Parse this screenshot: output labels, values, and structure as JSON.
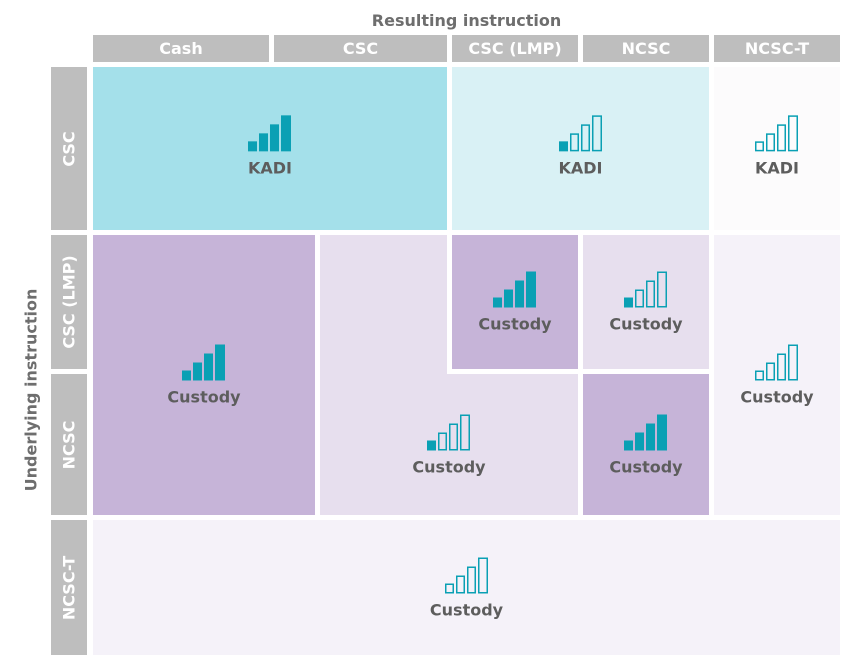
{
  "titles": {
    "top": "Resulting instruction",
    "side": "Underlying instruction"
  },
  "columns": [
    {
      "key": "cash",
      "label": "Cash"
    },
    {
      "key": "csc",
      "label": "CSC"
    },
    {
      "key": "csc-lmp",
      "label": "CSC (LMP)"
    },
    {
      "key": "ncsc",
      "label": "NCSC"
    },
    {
      "key": "ncsc-t",
      "label": "NCSC-T"
    }
  ],
  "rows": [
    {
      "key": "csc",
      "label": "CSC"
    },
    {
      "key": "csc-lmp",
      "label": "CSC (LMP)"
    },
    {
      "key": "ncsc",
      "label": "NCSC"
    },
    {
      "key": "ncsc-t",
      "label": "NCSC-T"
    }
  ],
  "colors": {
    "header_gray": "#bebebe",
    "accent_teal": "#0aa0b4",
    "kadi_strong": "#a4e0ea",
    "kadi_light": "#d9f1f5",
    "kadi_faint": "#fcfbfc",
    "custody_strong": "#c6b4d8",
    "custody_light": "#e7dfee",
    "custody_faint": "#f5f2f9"
  },
  "icon_legend": {
    "bars-filled-icon": "4 of 4 bars filled",
    "bars-one-filled-icon": "1 of 4 bars filled"
  },
  "cells": [
    {
      "id": "csc-row-cash-csc",
      "row": "CSC",
      "cols": [
        "Cash",
        "CSC"
      ],
      "label": "KADI",
      "fill_level": "strong",
      "icon": "bars-filled-icon"
    },
    {
      "id": "csc-row-lmp-ncsc",
      "row": "CSC",
      "cols": [
        "CSC (LMP)",
        "NCSC"
      ],
      "label": "KADI",
      "fill_level": "light",
      "icon": "bars-one-filled-icon"
    },
    {
      "id": "csc-row-ncsc-t",
      "row": "CSC",
      "cols": [
        "NCSC-T"
      ],
      "label": "KADI",
      "fill_level": "faint",
      "icon": "bars-one-filled-icon"
    },
    {
      "id": "lmp-ncsc-rows-cash",
      "rows": [
        "CSC (LMP)",
        "NCSC"
      ],
      "cols": [
        "Cash"
      ],
      "label": "Custody",
      "fill_level": "strong",
      "icon": "bars-filled-icon"
    },
    {
      "id": "lmp-ncsc-rows-csc",
      "rows": [
        "CSC (LMP)",
        "NCSC"
      ],
      "cols": [
        "CSC",
        "CSC (LMP)"
      ],
      "label": "Custody",
      "fill_level": "light",
      "icon": "bars-one-filled-icon"
    },
    {
      "id": "lmp-row-lmp",
      "row": "CSC (LMP)",
      "cols": [
        "CSC (LMP)"
      ],
      "label": "Custody",
      "fill_level": "strong",
      "icon": "bars-filled-icon"
    },
    {
      "id": "lmp-row-ncsc",
      "row": "CSC (LMP)",
      "cols": [
        "NCSC"
      ],
      "label": "Custody",
      "fill_level": "light",
      "icon": "bars-one-filled-icon"
    },
    {
      "id": "ncsc-row-ncsc",
      "row": "NCSC",
      "cols": [
        "NCSC"
      ],
      "label": "Custody",
      "fill_level": "strong",
      "icon": "bars-filled-icon"
    },
    {
      "id": "lmp-ncsc-rows-ncsc-t",
      "rows": [
        "CSC (LMP)",
        "NCSC"
      ],
      "cols": [
        "NCSC-T"
      ],
      "label": "Custody",
      "fill_level": "faint",
      "icon": "bars-one-filled-icon"
    },
    {
      "id": "ncsc-t-row-all",
      "row": "NCSC-T",
      "cols": [
        "Cash",
        "CSC",
        "CSC (LMP)",
        "NCSC",
        "NCSC-T"
      ],
      "label": "Custody",
      "fill_level": "faint",
      "icon": "bars-one-filled-icon"
    }
  ]
}
